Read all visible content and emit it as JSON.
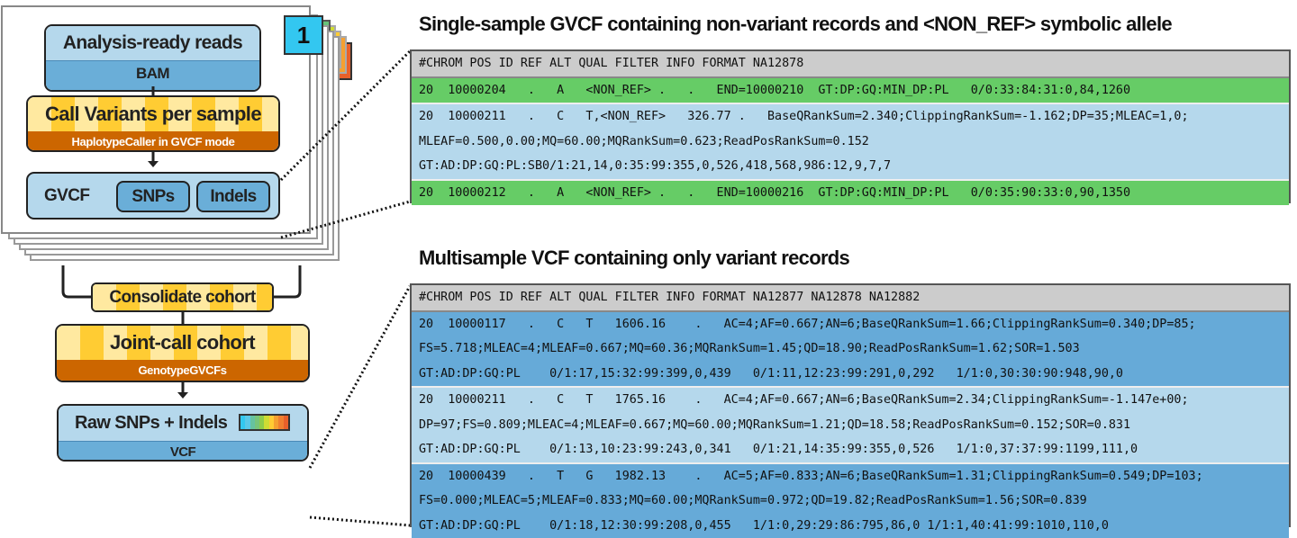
{
  "workflow": {
    "sample_badge": "1",
    "reads": {
      "title": "Analysis-ready reads",
      "format": "BAM"
    },
    "call_variants": {
      "title": "Call Variants per sample",
      "tool": "HaplotypeCaller in GVCF mode"
    },
    "gvcf": {
      "label": "GVCF",
      "snps": "SNPs",
      "indels": "Indels"
    },
    "consolidate": {
      "title": "Consolidate cohort"
    },
    "joint_call": {
      "title": "Joint-call cohort",
      "tool": "GenotypeGVCFs"
    },
    "raw": {
      "title": "Raw SNPs + Indels",
      "format": "VCF"
    },
    "colors": {
      "light_blue": "#b5d8ec",
      "dark_blue": "#6aaed8",
      "yellow": "#ffcc33",
      "orange": "#cc6600",
      "green": "#66cc66",
      "badge": "#33c7f0"
    },
    "color_bar": [
      "#33c7f0",
      "#5bc8e8",
      "#66c2a0",
      "#78c47a",
      "#8fcc4a",
      "#cfdc33",
      "#ffcc33",
      "#f5a030",
      "#f08030",
      "#e8602a"
    ]
  },
  "gvcf_panel": {
    "title": "Single-sample GVCF containing non-variant records and <NON_REF> symbolic allele",
    "header": "#CHROM POS ID REF ALT QUAL FILTER INFO FORMAT NA12878",
    "records": [
      {
        "type": "non-variant",
        "lines": [
          "20  10000204   .   A   <NON_REF> .   .   END=10000210  GT:DP:GQ:MIN_DP:PL   0/0:33:84:31:0,84,1260"
        ]
      },
      {
        "type": "variant",
        "lines": [
          "20  10000211   .   C   T,<NON_REF>   326.77 .   BaseQRankSum=2.340;ClippingRankSum=-1.162;DP=35;MLEAC=1,0;",
          "MLEAF=0.500,0.00;MQ=60.00;MQRankSum=0.623;ReadPosRankSum=0.152",
          "GT:AD:DP:GQ:PL:SB0/1:21,14,0:35:99:355,0,526,418,568,986:12,9,7,7"
        ]
      },
      {
        "type": "non-variant",
        "lines": [
          "20  10000212   .   A   <NON_REF> .   .   END=10000216  GT:DP:GQ:MIN_DP:PL   0/0:35:90:33:0,90,1350"
        ]
      }
    ]
  },
  "vcf_panel": {
    "title": "Multisample VCF containing only variant records",
    "header": "#CHROM POS ID REF ALT QUAL FILTER INFO FORMAT NA12877 NA12878 NA12882",
    "records": [
      {
        "lines": [
          "20  10000117   .   C   T   1606.16    .   AC=4;AF=0.667;AN=6;BaseQRankSum=1.66;ClippingRankSum=0.340;DP=85;",
          "FS=5.718;MLEAC=4;MLEAF=0.667;MQ=60.36;MQRankSum=1.45;QD=18.90;ReadPosRankSum=1.62;SOR=1.503",
          "GT:AD:DP:GQ:PL    0/1:17,15:32:99:399,0,439   0/1:11,12:23:99:291,0,292   1/1:0,30:30:90:948,90,0"
        ]
      },
      {
        "lines": [
          "20  10000211   .   C   T   1765.16    .   AC=4;AF=0.667;AN=6;BaseQRankSum=2.34;ClippingRankSum=-1.147e+00;",
          "DP=97;FS=0.809;MLEAC=4;MLEAF=0.667;MQ=60.00;MQRankSum=1.21;QD=18.58;ReadPosRankSum=0.152;SOR=0.831",
          "GT:AD:DP:GQ:PL    0/1:13,10:23:99:243,0,341   0/1:21,14:35:99:355,0,526   1/1:0,37:37:99:1199,111,0"
        ]
      },
      {
        "lines": [
          "20  10000439   .   T   G   1982.13    .   AC=5;AF=0.833;AN=6;BaseQRankSum=1.31;ClippingRankSum=0.549;DP=103;",
          "FS=0.000;MLEAC=5;MLEAF=0.833;MQ=60.00;MQRankSum=0.972;QD=19.82;ReadPosRankSum=1.56;SOR=0.839",
          "GT:AD:DP:GQ:PL    0/1:18,12:30:99:208,0,455   1/1:0,29:29:86:795,86,0 1/1:1,40:41:99:1010,110,0"
        ]
      }
    ]
  }
}
